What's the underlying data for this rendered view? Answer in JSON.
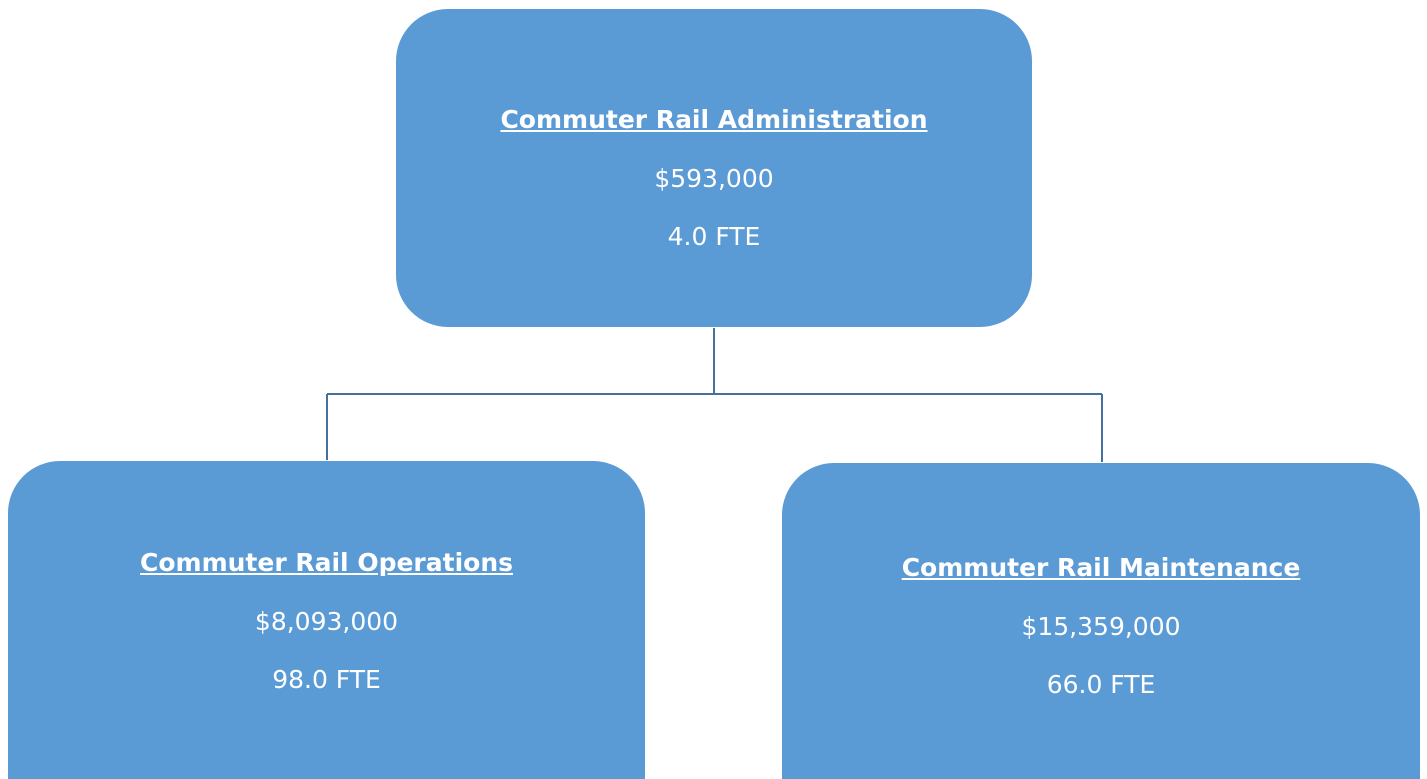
{
  "nodes": [
    {
      "title": "Commuter Rail Administration",
      "budget": "$593,000",
      "fte": "4.0 FTE"
    },
    {
      "title": "Commuter Rail Operations",
      "budget": "$8,093,000",
      "fte": "98.0 FTE"
    },
    {
      "title": "Commuter Rail Maintenance",
      "budget": "$15,359,000",
      "fte": "66.0 FTE"
    }
  ]
}
